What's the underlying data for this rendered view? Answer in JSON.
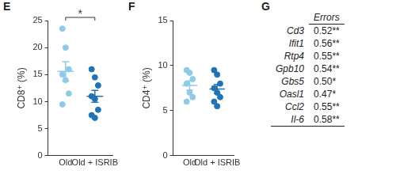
{
  "chart_data": [
    {
      "type": "scatter",
      "title": "E",
      "ylabel": "CD8⁺ (%)",
      "categories": [
        "Old",
        "Old + ISRIB"
      ],
      "values": [
        [
          23.5,
          20,
          16,
          15,
          14,
          11.5,
          9.5
        ],
        [
          16,
          14.5,
          13,
          11,
          10.5,
          8.5,
          7.5,
          7
        ]
      ],
      "means": [
        15.6,
        11
      ],
      "errors": [
        1.8,
        1.1
      ],
      "colors": [
        "#8fcbe8",
        "#2273b5"
      ],
      "ylim": [
        0,
        25
      ],
      "yticks": [
        0,
        5,
        10,
        15,
        20,
        25
      ],
      "grid": false,
      "annotations": [
        {
          "text": "*",
          "from": "Old",
          "to": "Old + ISRIB"
        }
      ]
    },
    {
      "type": "scatter",
      "title": "F",
      "ylabel": "CD4⁺ (%)",
      "categories": [
        "Old",
        "Old + ISRIB"
      ],
      "values": [
        [
          9.5,
          9.2,
          8.5,
          8,
          7,
          6.5,
          6
        ],
        [
          9.5,
          9,
          8,
          7.5,
          7,
          6.5,
          6,
          5.5
        ]
      ],
      "means": [
        7.8,
        7.4
      ],
      "errors": [
        0.5,
        0.5
      ],
      "colors": [
        "#8fcbe8",
        "#2273b5"
      ],
      "ylim": [
        0,
        15
      ],
      "yticks": [
        0,
        5,
        10,
        15
      ],
      "grid": false
    }
  ],
  "table": {
    "title": "G",
    "header": "Errors",
    "rows": [
      {
        "label": "Cd3",
        "value": "0.52**"
      },
      {
        "label": "Ifit1",
        "value": "0.56**"
      },
      {
        "label": "Rtp4",
        "value": "0.55**"
      },
      {
        "label": "Gpb10",
        "value": "0.54**"
      },
      {
        "label": "Gbs5",
        "value": "0.50*"
      },
      {
        "label": "Oasl1",
        "value": "0.47*"
      },
      {
        "label": "Ccl2",
        "value": "0.55**"
      },
      {
        "label": "Il-6",
        "value": "0.58**"
      }
    ]
  }
}
